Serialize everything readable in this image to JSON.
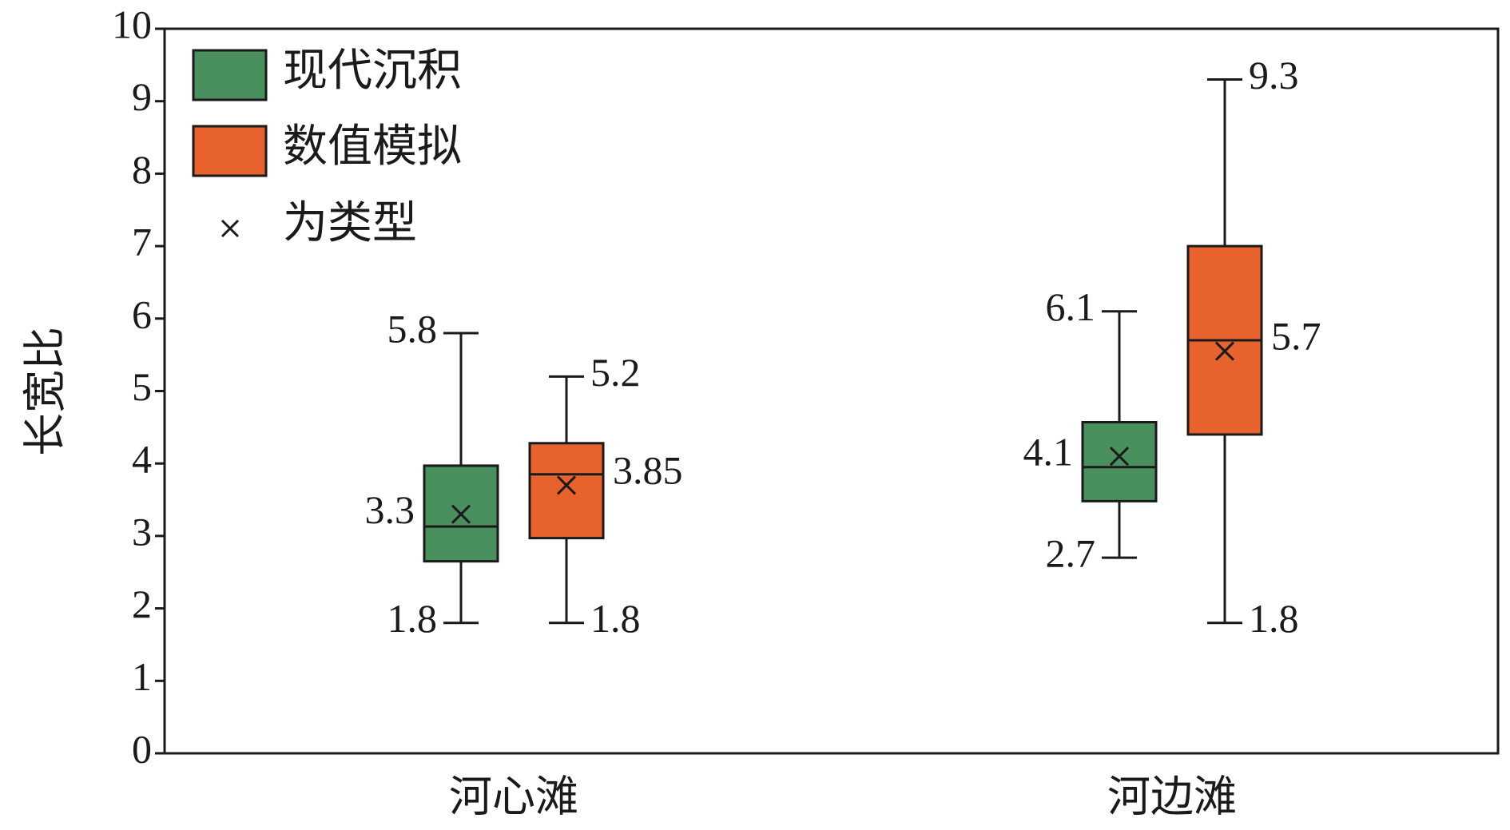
{
  "chart_data": {
    "type": "box",
    "y_label": "长宽比",
    "categories": [
      "河心滩",
      "河边滩"
    ],
    "series": [
      {
        "name": "现代沉积",
        "color": "#4a8f5e",
        "boxes": [
          {
            "min": 1.8,
            "q1": 2.65,
            "median": 3.13,
            "q3": 3.97,
            "max": 5.8,
            "mean": 3.3
          },
          {
            "min": 2.7,
            "q1": 3.48,
            "median": 3.95,
            "q3": 4.57,
            "max": 6.1,
            "mean": 4.1
          }
        ]
      },
      {
        "name": "数值模拟",
        "color": "#e8622e",
        "boxes": [
          {
            "min": 1.8,
            "q1": 2.97,
            "median": 3.85,
            "q3": 4.28,
            "max": 5.2,
            "mean": 3.7
          },
          {
            "min": 1.8,
            "q1": 4.4,
            "median": 5.7,
            "q3": 7.0,
            "max": 9.3,
            "mean": 5.55
          }
        ]
      }
    ],
    "mean_label": "为类型",
    "ylim": [
      0,
      10
    ],
    "yticks": [
      0,
      1,
      2,
      3,
      4,
      5,
      6,
      7,
      8,
      9,
      10
    ],
    "legend": "top-left"
  }
}
